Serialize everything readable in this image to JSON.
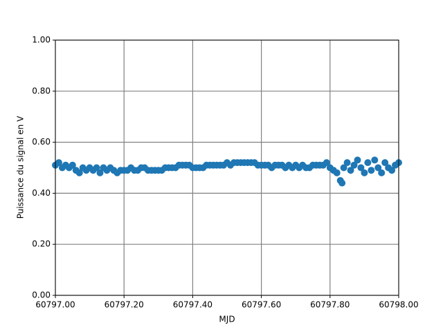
{
  "chart_data": {
    "type": "scatter",
    "xlabel": "MJD",
    "ylabel": "Puissance du signal en V",
    "xlim": [
      60797.0,
      60798.0
    ],
    "xticks": [
      {
        "value": 60797.0,
        "label": "60797.00"
      },
      {
        "value": 60797.2,
        "label": "60797.20"
      },
      {
        "value": 60797.4,
        "label": "60797.40"
      },
      {
        "value": 60797.6,
        "label": "60797.60"
      },
      {
        "value": 60797.8,
        "label": "60797.80"
      },
      {
        "value": 60798.0,
        "label": "60798.00"
      }
    ],
    "ylim": [
      0,
      1
    ],
    "yticks": [
      {
        "value": 0,
        "label": "0.00"
      },
      {
        "value": 0.2,
        "label": "0.20"
      },
      {
        "value": 0.4,
        "label": "0.40"
      },
      {
        "value": 0.6,
        "label": "0.60"
      },
      {
        "value": 0.8,
        "label": "0.80"
      },
      {
        "value": 1,
        "label": "1.00"
      }
    ],
    "grid": true,
    "color": "#1f77b4",
    "x": [
      60797.0,
      60797.01,
      60797.02,
      60797.03,
      60797.04,
      60797.05,
      60797.06,
      60797.07,
      60797.08,
      60797.09,
      60797.1,
      60797.11,
      60797.12,
      60797.13,
      60797.14,
      60797.15,
      60797.16,
      60797.17,
      60797.18,
      60797.19,
      60797.2,
      60797.21,
      60797.22,
      60797.23,
      60797.24,
      60797.25,
      60797.26,
      60797.27,
      60797.28,
      60797.29,
      60797.3,
      60797.31,
      60797.32,
      60797.33,
      60797.34,
      60797.35,
      60797.36,
      60797.37,
      60797.38,
      60797.39,
      60797.4,
      60797.41,
      60797.42,
      60797.43,
      60797.44,
      60797.45,
      60797.46,
      60797.47,
      60797.48,
      60797.49,
      60797.5,
      60797.51,
      60797.52,
      60797.53,
      60797.54,
      60797.55,
      60797.56,
      60797.57,
      60797.58,
      60797.59,
      60797.6,
      60797.61,
      60797.62,
      60797.63,
      60797.64,
      60797.65,
      60797.66,
      60797.67,
      60797.68,
      60797.69,
      60797.7,
      60797.71,
      60797.72,
      60797.73,
      60797.74,
      60797.75,
      60797.76,
      60797.77,
      60797.78,
      60797.79,
      60797.8,
      60797.81,
      60797.82,
      60797.83,
      60797.835,
      60797.84,
      60797.85,
      60797.86,
      60797.87,
      60797.88,
      60797.89,
      60797.9,
      60797.91,
      60797.92,
      60797.93,
      60797.94,
      60797.95,
      60797.96,
      60797.97,
      60797.98,
      60797.99,
      60798.0
    ],
    "values": [
      0.51,
      0.52,
      0.5,
      0.51,
      0.5,
      0.51,
      0.49,
      0.48,
      0.5,
      0.49,
      0.5,
      0.49,
      0.5,
      0.48,
      0.5,
      0.49,
      0.5,
      0.49,
      0.48,
      0.49,
      0.49,
      0.49,
      0.5,
      0.49,
      0.49,
      0.5,
      0.5,
      0.49,
      0.49,
      0.49,
      0.49,
      0.49,
      0.5,
      0.5,
      0.5,
      0.5,
      0.51,
      0.51,
      0.51,
      0.51,
      0.5,
      0.5,
      0.5,
      0.5,
      0.51,
      0.51,
      0.51,
      0.51,
      0.51,
      0.51,
      0.52,
      0.51,
      0.52,
      0.52,
      0.52,
      0.52,
      0.52,
      0.52,
      0.52,
      0.51,
      0.51,
      0.51,
      0.51,
      0.5,
      0.51,
      0.51,
      0.51,
      0.5,
      0.51,
      0.5,
      0.51,
      0.5,
      0.51,
      0.5,
      0.5,
      0.51,
      0.51,
      0.51,
      0.51,
      0.52,
      0.5,
      0.49,
      0.48,
      0.45,
      0.44,
      0.5,
      0.52,
      0.49,
      0.51,
      0.53,
      0.5,
      0.48,
      0.52,
      0.49,
      0.53,
      0.5,
      0.48,
      0.52,
      0.5,
      0.49,
      0.51,
      0.52
    ]
  }
}
